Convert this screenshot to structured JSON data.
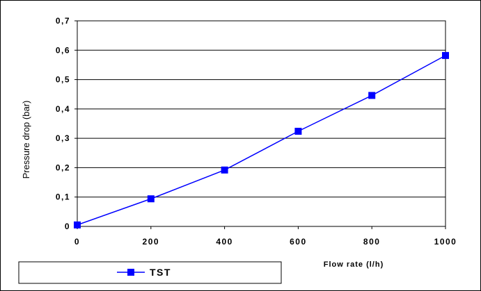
{
  "chart_data": {
    "type": "line",
    "x": [
      0,
      200,
      400,
      600,
      800,
      1000
    ],
    "series": [
      {
        "name": "TST",
        "values": [
          0.005,
          0.094,
          0.192,
          0.324,
          0.446,
          0.582
        ],
        "color": "#0000ff",
        "marker": "square"
      }
    ],
    "xlabel": "Flow rate (l/h)",
    "ylabel": "Pressure drop (bar)",
    "xlim": [
      0,
      1000
    ],
    "ylim": [
      0,
      0.7
    ],
    "x_ticks": [
      "0",
      "200",
      "400",
      "600",
      "800",
      "1000"
    ],
    "y_ticks": [
      "0",
      "0,1",
      "0,2",
      "0,3",
      "0,4",
      "0,5",
      "0,6",
      "0,7"
    ],
    "grid": "horizontal",
    "legend_position": "bottom-left"
  }
}
